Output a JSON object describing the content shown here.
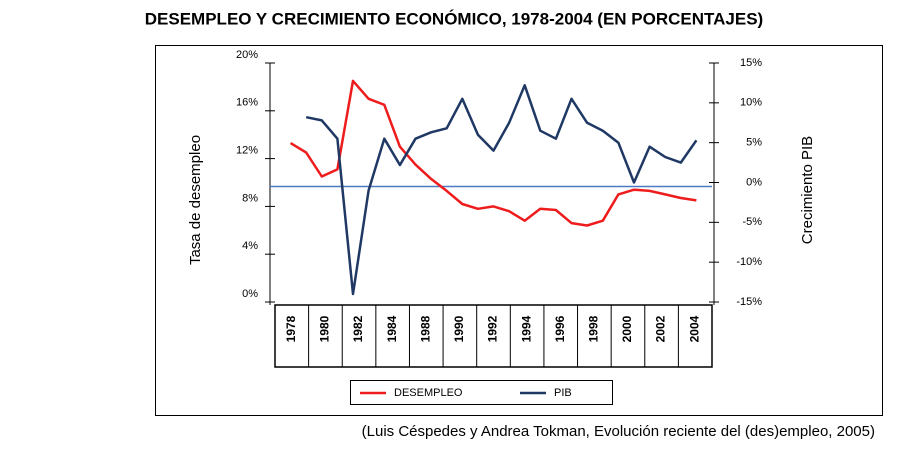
{
  "chart_data": {
    "type": "line",
    "title": "DESEMPLEO Y CRECIMIENTO ECONÓMICO, 1978-2004 (EN PORCENTAJES)",
    "y_label": "Tasa de desempleo",
    "y2_label": "Crecimiento  PIB",
    "caption": "(Luis Céspedes y Andrea Tokman, Evolución reciente del (des)empleo, 2005)",
    "categories": [
      "1978",
      "1980",
      "1982",
      "1984",
      "1988",
      "1990",
      "1992",
      "1994",
      "1996",
      "1998",
      "2000",
      "2002",
      "2004"
    ],
    "x": [
      1978,
      1979,
      1980,
      1981,
      1982,
      1983,
      1984,
      1985,
      1986,
      1987,
      1988,
      1989,
      1990,
      1991,
      1992,
      1993,
      1994,
      1995,
      1996,
      1997,
      1998,
      1999,
      2000,
      2001,
      2002,
      2003,
      2004
    ],
    "xlim": [
      1977,
      2005
    ],
    "series": [
      {
        "name": "DESEMPLEO",
        "color": "#ee1c1c",
        "values": [
          13.3,
          12.5,
          10.5,
          11.1,
          18.5,
          17,
          16.5,
          13,
          11.5,
          10.3,
          9.3,
          8.2,
          7.8,
          8,
          7.6,
          6.8,
          7.8,
          7.7,
          6.6,
          6.4,
          6.8,
          9.0,
          9.4,
          9.3,
          9.0,
          8.7,
          8.5
        ]
      },
      {
        "name": "PIB",
        "color": "#1f3864",
        "axis": "y2",
        "values": [
          null,
          8.2,
          7.8,
          5.5,
          -14,
          -1,
          5.5,
          2.2,
          5.5,
          6.3,
          6.8,
          10.5,
          6,
          4,
          7.5,
          12.2,
          6.5,
          5.5,
          10.5,
          7.5,
          6.5,
          5,
          0,
          4.5,
          3.2,
          2.5,
          5.3
        ]
      }
    ],
    "ylim": [
      0,
      20
    ],
    "yticks": [
      {
        "value": 0,
        "label": "0%"
      },
      {
        "value": 4,
        "label": "4%"
      },
      {
        "value": 8,
        "label": "8%"
      },
      {
        "value": 12,
        "label": "12%"
      },
      {
        "value": 16,
        "label": "16%"
      },
      {
        "value": 20,
        "label": "20%"
      }
    ],
    "y2lim": [
      -15,
      15
    ],
    "y2ticks": [
      {
        "value": -15,
        "label": "-15%"
      },
      {
        "value": -10,
        "label": "-10%"
      },
      {
        "value": -5,
        "label": "-5%"
      },
      {
        "value": 0,
        "label": "0%"
      },
      {
        "value": 5,
        "label": "5%"
      },
      {
        "value": 10,
        "label": "10%"
      },
      {
        "value": 15,
        "label": "15%"
      }
    ],
    "zero_line_color": "#4a7bc4"
  }
}
